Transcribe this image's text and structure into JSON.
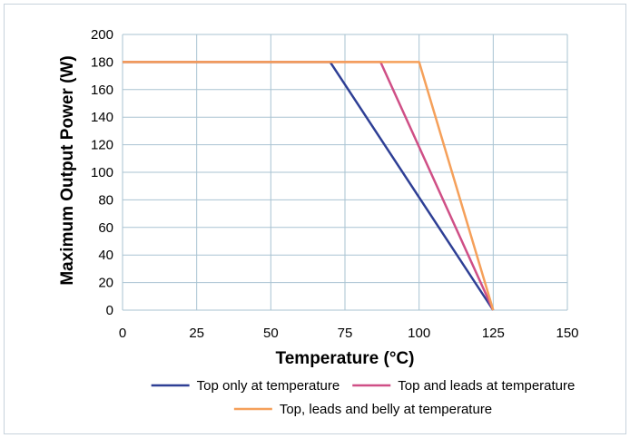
{
  "chart_data": {
    "type": "line",
    "title": "",
    "xlabel": "Temperature (°C)",
    "ylabel": "Maximum Output Power (W)",
    "xlim": [
      0,
      150
    ],
    "ylim": [
      0,
      200
    ],
    "xticks": [
      0,
      25,
      50,
      75,
      100,
      125,
      150
    ],
    "yticks": [
      0,
      20,
      40,
      60,
      80,
      100,
      120,
      140,
      160,
      180,
      200
    ],
    "grid": true,
    "legend_position": "bottom",
    "series": [
      {
        "name": "Top only at temperature",
        "color": "#2e3f95",
        "x": [
          0,
          70,
          125
        ],
        "y": [
          180,
          180,
          0
        ]
      },
      {
        "name": "Top and leads at temperature",
        "color": "#cf4f86",
        "x": [
          0,
          87,
          125
        ],
        "y": [
          180,
          180,
          0
        ]
      },
      {
        "name": "Top, leads and belly at temperature",
        "color": "#f5a05a",
        "x": [
          0,
          100,
          125
        ],
        "y": [
          180,
          180,
          0
        ]
      }
    ]
  }
}
